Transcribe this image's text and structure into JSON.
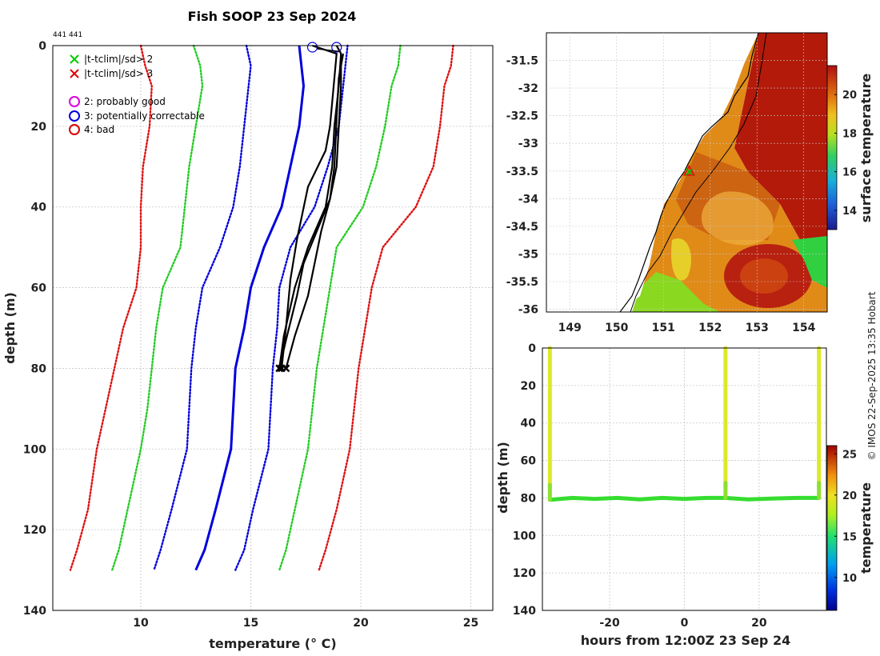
{
  "title": "Fish SOOP 23 Sep 2024",
  "id_label": "441 441",
  "credit": "© IMOS 22-Sep-2025 13:35 Hobart",
  "colors": {
    "climatology_sd2": "#22cc22",
    "climatology_sd3": "#dd1111",
    "mean_line": "#0000dd",
    "profile": "#000000",
    "grid": "#bbbbbb"
  },
  "legend": [
    {
      "symbol": "x",
      "color": "#00cc00",
      "label": "|t-tclim|/sd> 2"
    },
    {
      "symbol": "x",
      "color": "#dd0000",
      "label": "|t-tclim|/sd> 3"
    },
    {
      "symbol": "o",
      "color": "#dd00dd",
      "label": "2: probably good"
    },
    {
      "symbol": "o",
      "color": "#0000dd",
      "label": "3: potentially correctable"
    },
    {
      "symbol": "o",
      "color": "#dd0000",
      "label": "4: bad"
    }
  ],
  "chart_data": [
    {
      "type": "line",
      "name": "profile-plot",
      "xlabel": "temperature (° C)",
      "ylabel": "depth (m)",
      "xlim": [
        6,
        26
      ],
      "ylim": [
        0,
        140
      ],
      "y_reversed": true,
      "xticks": [
        10,
        15,
        20,
        25
      ],
      "yticks": [
        0,
        20,
        40,
        60,
        80,
        100,
        120,
        140
      ],
      "grid": true,
      "series": [
        {
          "name": "clim -3sd",
          "color": "#dd1111",
          "dash": "dot",
          "x": [
            10.0,
            10.2,
            10.5,
            10.4,
            10.1,
            10.0,
            10.0,
            9.8,
            9.2,
            8.8,
            8.4,
            8.0,
            7.6,
            7.1,
            6.8
          ],
          "y": [
            0,
            5,
            10,
            20,
            30,
            40,
            50,
            60,
            70,
            80,
            90,
            100,
            115,
            125,
            130
          ]
        },
        {
          "name": "clim -2sd",
          "color": "#22cc22",
          "dash": "dot",
          "x": [
            12.4,
            12.7,
            12.8,
            12.5,
            12.2,
            12.0,
            11.8,
            11.0,
            10.7,
            10.5,
            10.3,
            10.0,
            9.4,
            9.0,
            8.7
          ],
          "y": [
            0,
            5,
            10,
            20,
            30,
            40,
            50,
            60,
            70,
            80,
            90,
            100,
            115,
            125,
            130
          ]
        },
        {
          "name": "clim -1sd",
          "color": "#0000dd",
          "dash": "dot",
          "x": [
            14.8,
            15.0,
            14.9,
            14.7,
            14.5,
            14.2,
            13.6,
            12.8,
            12.5,
            12.3,
            12.2,
            12.1,
            11.4,
            10.9,
            10.6
          ],
          "y": [
            0,
            5,
            10,
            20,
            30,
            40,
            50,
            60,
            70,
            80,
            90,
            100,
            115,
            125,
            130
          ]
        },
        {
          "name": "clim mean",
          "color": "#0000dd",
          "dash": "solid",
          "x": [
            17.2,
            17.3,
            17.4,
            17.2,
            16.8,
            16.4,
            15.6,
            15.0,
            14.7,
            14.3,
            14.2,
            14.1,
            13.4,
            12.9,
            12.5
          ],
          "y": [
            0,
            5,
            10,
            20,
            30,
            40,
            50,
            60,
            70,
            80,
            90,
            100,
            115,
            125,
            130
          ]
        },
        {
          "name": "clim +1sd",
          "color": "#0000dd",
          "dash": "dot",
          "x": [
            19.4,
            19.3,
            19.2,
            19.0,
            18.5,
            17.9,
            16.8,
            16.3,
            16.2,
            16.0,
            15.9,
            15.8,
            15.1,
            14.7,
            14.3
          ],
          "y": [
            0,
            5,
            10,
            20,
            30,
            40,
            50,
            60,
            70,
            80,
            90,
            100,
            115,
            125,
            130
          ]
        },
        {
          "name": "clim +2sd",
          "color": "#22cc22",
          "dash": "dot",
          "x": [
            21.8,
            21.7,
            21.4,
            21.1,
            20.7,
            20.1,
            18.9,
            18.6,
            18.3,
            18.0,
            17.8,
            17.6,
            17.0,
            16.6,
            16.3
          ],
          "y": [
            0,
            5,
            10,
            20,
            30,
            40,
            50,
            60,
            70,
            80,
            90,
            100,
            115,
            125,
            130
          ]
        },
        {
          "name": "clim +3sd",
          "color": "#dd1111",
          "dash": "dot",
          "x": [
            24.2,
            24.1,
            23.8,
            23.6,
            23.3,
            22.5,
            21.0,
            20.5,
            20.2,
            19.9,
            19.7,
            19.5,
            18.9,
            18.4,
            18.1
          ],
          "y": [
            0,
            5,
            10,
            20,
            30,
            40,
            50,
            60,
            70,
            80,
            90,
            100,
            115,
            125,
            130
          ]
        },
        {
          "name": "cast 1",
          "color": "#000000",
          "dash": "solid",
          "x": [
            17.8,
            18.9,
            18.8,
            18.6,
            18.4,
            17.6,
            17.1,
            16.8,
            16.6,
            16.4
          ],
          "y": [
            0,
            2,
            8,
            20,
            26,
            35,
            48,
            58,
            70,
            80
          ]
        },
        {
          "name": "cast 2",
          "color": "#000000",
          "dash": "solid",
          "x": [
            18.9,
            19.1,
            19.0,
            18.8,
            18.7,
            18.4,
            17.6,
            17.0,
            16.5,
            16.3
          ],
          "y": [
            0,
            2,
            10,
            20,
            30,
            40,
            50,
            60,
            72,
            80
          ]
        },
        {
          "name": "cast 3",
          "color": "#000000",
          "dash": "solid",
          "x": [
            19.2,
            19.0,
            18.9,
            18.8,
            18.6,
            18.0,
            17.4,
            17.1,
            16.6,
            16.3
          ],
          "y": [
            2,
            8,
            18,
            30,
            38,
            46,
            54,
            62,
            73,
            80
          ]
        },
        {
          "name": "cast 4",
          "color": "#000000",
          "dash": "solid",
          "x": [
            19.1,
            19.1,
            19.0,
            18.9,
            18.6,
            18.2,
            17.9,
            17.6,
            17.0,
            16.6
          ],
          "y": [
            2,
            10,
            20,
            30,
            38,
            46,
            54,
            62,
            72,
            80
          ]
        }
      ],
      "flags": [
        {
          "type": "circle",
          "color": "#0000dd",
          "x": 17.8,
          "y": 0
        },
        {
          "type": "circle",
          "color": "#0000dd",
          "x": 18.9,
          "y": 0
        }
      ]
    },
    {
      "type": "heatmap",
      "name": "sst-map",
      "xticks": [
        149,
        150,
        151,
        152,
        153,
        154
      ],
      "yticks": [
        -31.5,
        -32,
        -32.5,
        -33,
        -33.5,
        -34,
        -34.5,
        -35,
        -35.5,
        -36
      ],
      "xlim": [
        148.5,
        154.5
      ],
      "ylim": [
        -36.05,
        -31.0
      ],
      "colorbar": {
        "label": "surface temperature",
        "ticks": [
          14,
          16,
          18,
          20
        ],
        "range": [
          13,
          21.5
        ]
      },
      "marker": {
        "lon": 151.55,
        "lat": -33.5
      }
    },
    {
      "type": "scatter",
      "name": "time-depth-section",
      "xlabel": "hours from 12:00Z 23 Sep 24",
      "ylabel": "depth (m)",
      "xlim": [
        -38,
        38
      ],
      "ylim": [
        0,
        140
      ],
      "y_reversed": true,
      "xticks": [
        -20,
        0,
        20
      ],
      "yticks": [
        0,
        20,
        40,
        60,
        80,
        100,
        120,
        140
      ],
      "casts": [
        {
          "hours": -36,
          "max_depth": 81
        },
        {
          "hours": 11,
          "max_depth": 80
        },
        {
          "hours": 36,
          "max_depth": 80
        }
      ],
      "bottom_hours": [
        -36,
        -30,
        -24,
        -18,
        -12,
        -6,
        0,
        6,
        11,
        17,
        24,
        30,
        36
      ],
      "bottom_depths": [
        81,
        80,
        80.5,
        80,
        80.8,
        80,
        80.5,
        80,
        80,
        80.8,
        80.3,
        80,
        80
      ],
      "colorbar": {
        "label": "temperature",
        "ticks": [
          10,
          15,
          20,
          25
        ],
        "range": [
          6,
          26
        ]
      }
    }
  ]
}
